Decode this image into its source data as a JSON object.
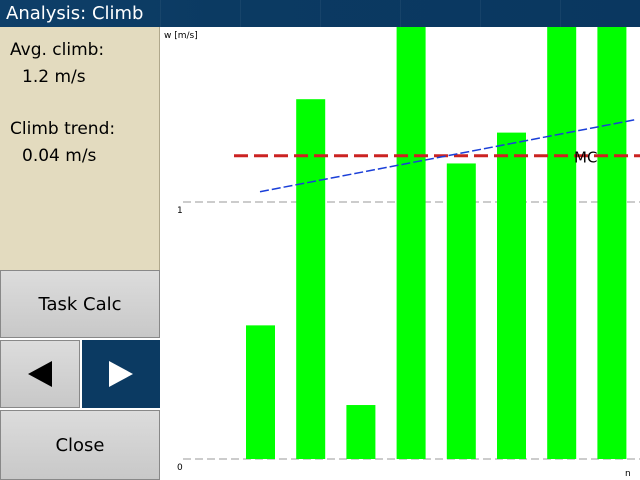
{
  "window": {
    "title": "Analysis: Climb"
  },
  "info": {
    "avg_climb_label": "Avg. climb:",
    "avg_climb_value": "1.2 m/s",
    "climb_trend_label": "Climb trend:",
    "climb_trend_value": "0.04 m/s"
  },
  "buttons": {
    "task_calc": "Task Calc",
    "prev_icon": "left-arrow-icon",
    "next_icon": "right-arrow-icon",
    "close": "Close"
  },
  "colors": {
    "title_bar": "#0b3a62",
    "info_panel": "#e3dbbf",
    "bars": "#00ff00",
    "mc_line": "#cc2222",
    "trend_line": "#1a3fd8",
    "grid": "#999999"
  },
  "chart_data": {
    "type": "bar",
    "ylabel": "w [m/s]",
    "xlabel": "n",
    "y_ticks": [
      "1",
      "0"
    ],
    "ylim": [
      0,
      1.7
    ],
    "values": [
      0.52,
      1.4,
      0.21,
      1.7,
      1.15,
      1.27,
      1.7,
      1.7
    ],
    "mc": {
      "label": "MC",
      "value": 1.18
    },
    "trend": {
      "start": 1.04,
      "end": 1.32
    }
  }
}
